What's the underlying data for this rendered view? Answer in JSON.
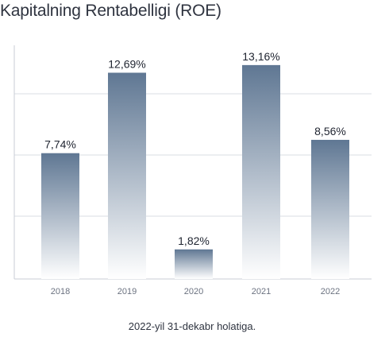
{
  "title": "Kapitalning Rentabelligi (ROE)",
  "caption": "2022-yil 31-dekabr holatiga.",
  "chart_data": {
    "type": "bar",
    "title": "Kapitalning Rentabelligi (ROE)",
    "categories": [
      "2018",
      "2019",
      "2020",
      "2021",
      "2022"
    ],
    "values": [
      7.74,
      12.69,
      1.82,
      13.16,
      8.56
    ],
    "value_labels": [
      "7,74%",
      "12,69%",
      "1,82%",
      "13,16%",
      "8,56%"
    ],
    "xlabel": "",
    "ylabel": "",
    "ylim": [
      0,
      15
    ],
    "grid": true,
    "bar_color_top": "#5f7793",
    "bar_color_bottom": "#ffffff"
  }
}
